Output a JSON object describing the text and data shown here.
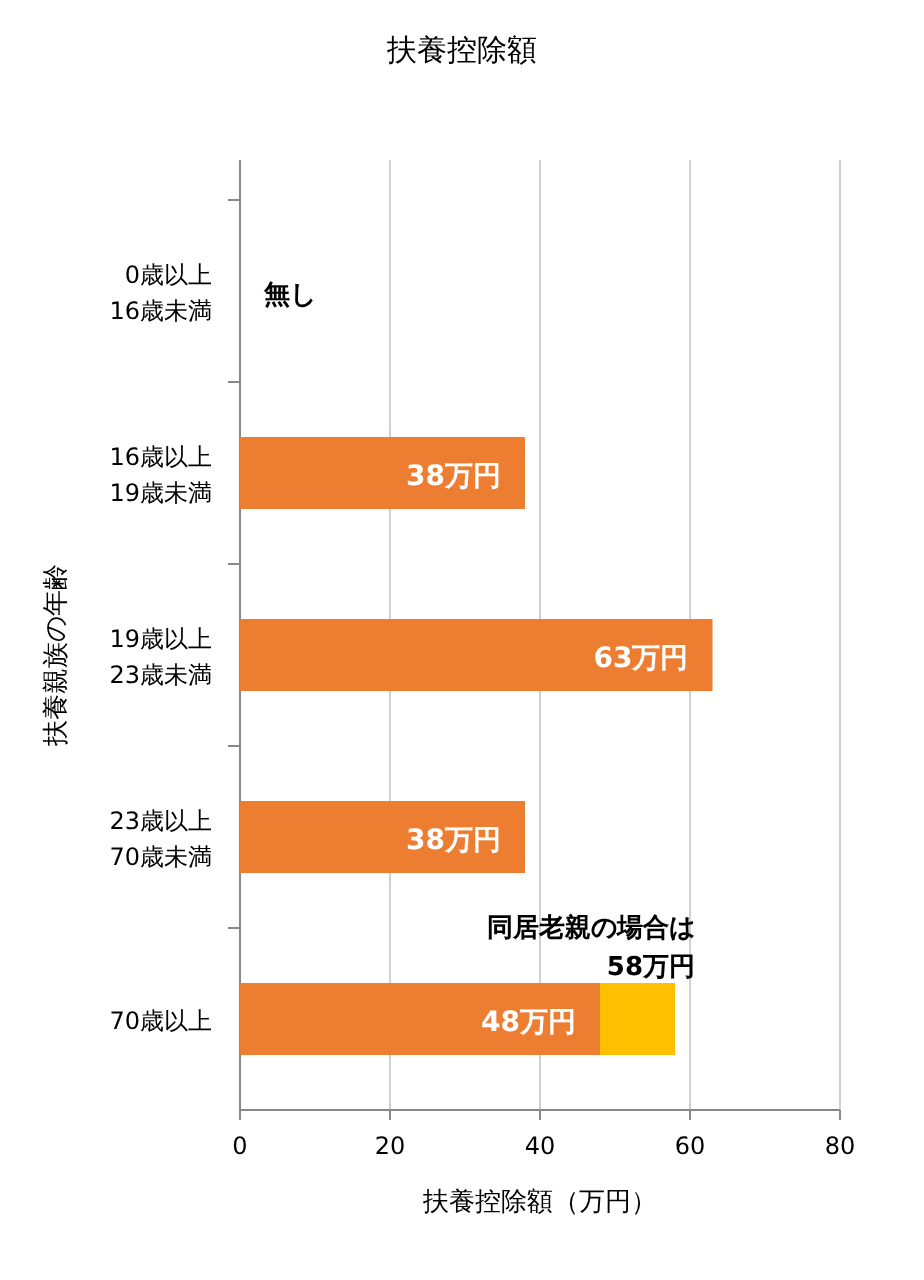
{
  "chart_data": {
    "type": "bar",
    "orientation": "horizontal",
    "stacked": true,
    "title": "扶養控除額",
    "xlabel": "扶養控除額（万円）",
    "ylabel": "扶養親族の年齢",
    "categories": [
      "0歳以上\n16歳未満",
      "16歳以上\n19歳未満",
      "19歳以上\n23歳未満",
      "23歳以上\n70歳未満",
      "70歳以上"
    ],
    "series": [
      {
        "color": "#ed7d31",
        "values": [
          0,
          38,
          63,
          38,
          48
        ],
        "value_labels": [
          "無し",
          "38万円",
          "63万円",
          "38万円",
          "48万円"
        ]
      },
      {
        "color": "#ffc000",
        "values": [
          null,
          null,
          null,
          null,
          10
        ]
      }
    ],
    "xlim": [
      0,
      80
    ],
    "xticks": [
      0,
      20,
      40,
      60,
      80
    ],
    "grid": "x",
    "annotations": [
      {
        "text": "同居老親の場合は\n58万円",
        "x": 58,
        "y": "70歳以上"
      }
    ]
  }
}
